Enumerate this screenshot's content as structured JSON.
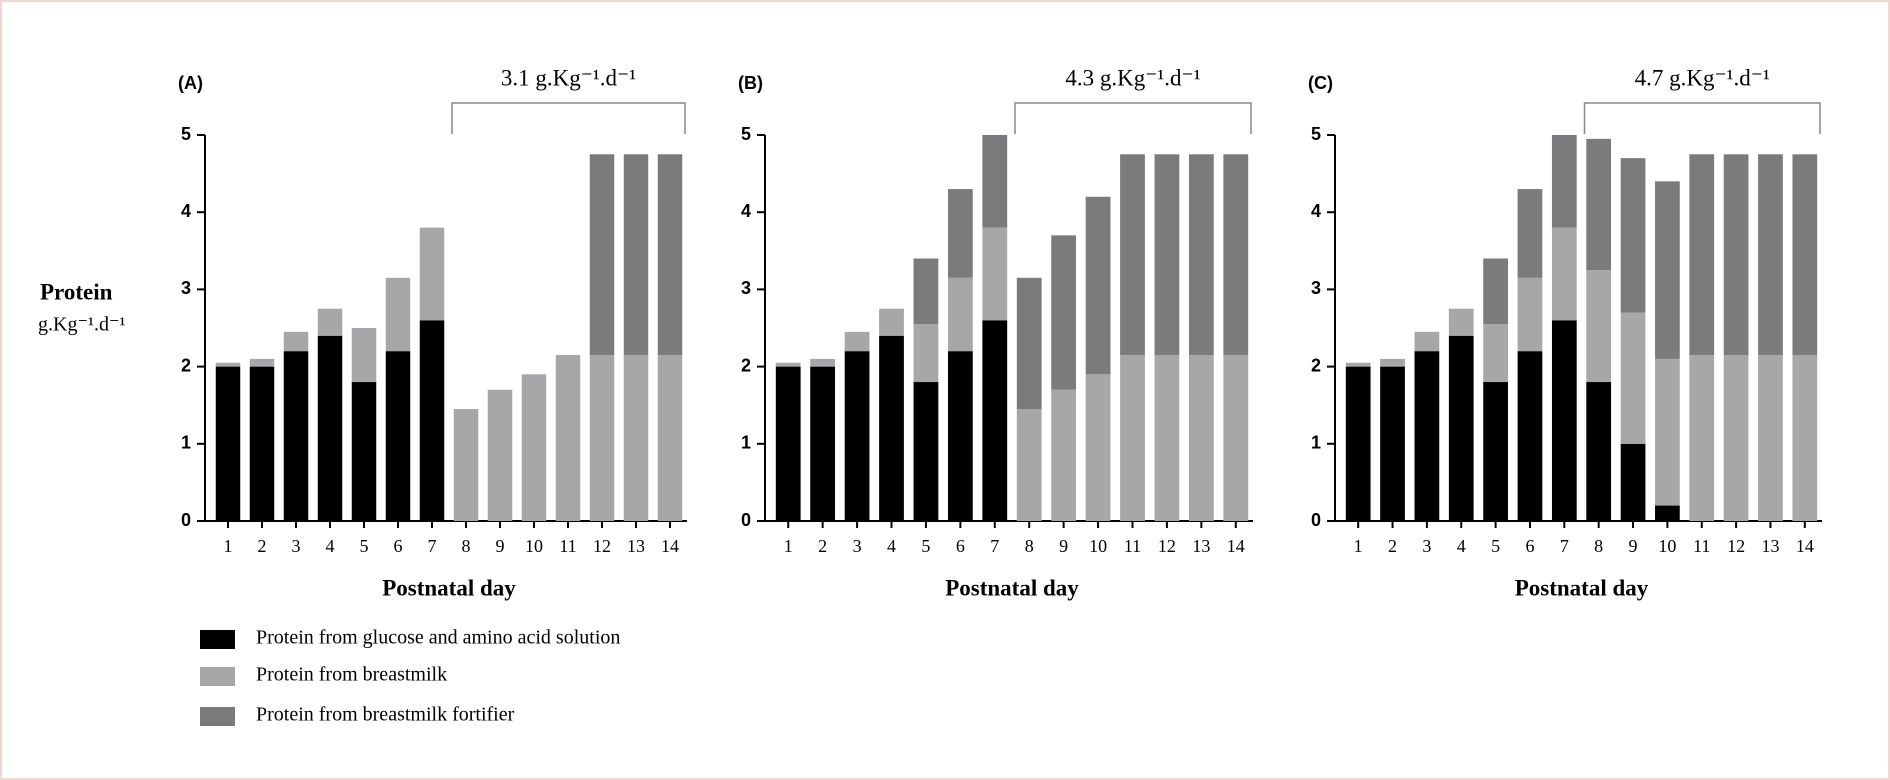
{
  "chart_data": [
    {
      "type": "stacked-bar",
      "title": "(A)",
      "annotation": "3.1 g.Kg⁻¹.d⁻¹",
      "ylabel": "Protein",
      "ylabel_units": "g.Kg⁻¹.d⁻¹",
      "xlabel": "Postnatal day",
      "categories": [
        "1",
        "2",
        "3",
        "4",
        "5",
        "6",
        "7",
        "8",
        "9",
        "10",
        "11",
        "12",
        "13",
        "14"
      ],
      "ylim": [
        0,
        5
      ],
      "yticks": [
        0,
        1,
        2,
        3,
        4,
        5
      ],
      "series": [
        {
          "name": "Protein from glucose and amino acid solution",
          "color": "#000000",
          "values": [
            2.0,
            2.0,
            2.2,
            2.4,
            1.8,
            2.2,
            2.6,
            0,
            0,
            0,
            0,
            0,
            0,
            0
          ]
        },
        {
          "name": "Protein from breastmilk",
          "color": "#a7a7a9",
          "values": [
            0.05,
            0.1,
            0.25,
            0.35,
            0.7,
            0.95,
            1.2,
            1.45,
            1.7,
            1.9,
            2.15,
            2.15,
            2.15,
            2.15
          ]
        },
        {
          "name": "Protein from breastmilk fortifier",
          "color": "#7b7b7d",
          "values": [
            0,
            0,
            0,
            0,
            0,
            0,
            0,
            0,
            0,
            0,
            0,
            2.6,
            2.6,
            2.6
          ]
        }
      ]
    },
    {
      "type": "stacked-bar",
      "title": "(B)",
      "annotation": "4.3 g.Kg⁻¹.d⁻¹",
      "xlabel": "Postnatal day",
      "categories": [
        "1",
        "2",
        "3",
        "4",
        "5",
        "6",
        "7",
        "8",
        "9",
        "10",
        "11",
        "12",
        "13",
        "14"
      ],
      "ylim": [
        0,
        5
      ],
      "yticks": [
        0,
        1,
        2,
        3,
        4,
        5
      ],
      "series": [
        {
          "color": "#000000",
          "values": [
            2.0,
            2.0,
            2.2,
            2.4,
            1.8,
            2.2,
            2.6,
            0,
            0,
            0,
            0,
            0,
            0,
            0
          ]
        },
        {
          "color": "#a7a7a9",
          "values": [
            0.05,
            0.1,
            0.25,
            0.35,
            0.75,
            0.95,
            1.2,
            1.45,
            1.7,
            1.9,
            2.15,
            2.15,
            2.15,
            2.15
          ]
        },
        {
          "color": "#7b7b7d",
          "values": [
            0,
            0,
            0,
            0,
            0.85,
            1.15,
            1.2,
            1.7,
            2.0,
            2.3,
            2.6,
            2.6,
            2.6,
            2.6
          ]
        }
      ]
    },
    {
      "type": "stacked-bar",
      "title": "(C)",
      "annotation": "4.7 g.Kg⁻¹.d⁻¹",
      "xlabel": "Postnatal day",
      "categories": [
        "1",
        "2",
        "3",
        "4",
        "5",
        "6",
        "7",
        "8",
        "9",
        "10",
        "11",
        "12",
        "13",
        "14"
      ],
      "ylim": [
        0,
        5
      ],
      "yticks": [
        0,
        1,
        2,
        3,
        4,
        5
      ],
      "series": [
        {
          "color": "#000000",
          "values": [
            2.0,
            2.0,
            2.2,
            2.4,
            1.8,
            2.2,
            2.6,
            1.8,
            1.0,
            0.2,
            0,
            0,
            0,
            0
          ]
        },
        {
          "color": "#a7a7a9",
          "values": [
            0.05,
            0.1,
            0.25,
            0.35,
            0.75,
            0.95,
            1.2,
            1.45,
            1.7,
            1.9,
            2.15,
            2.15,
            2.15,
            2.15
          ]
        },
        {
          "color": "#7b7b7d",
          "values": [
            0,
            0,
            0,
            0,
            0.85,
            1.15,
            1.2,
            1.7,
            2.0,
            2.3,
            2.6,
            2.6,
            2.6,
            2.6
          ]
        }
      ]
    }
  ]
}
